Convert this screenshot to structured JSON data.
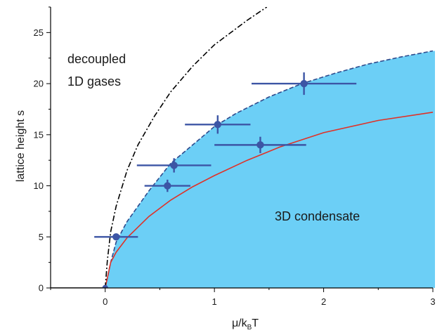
{
  "chart_data": {
    "type": "scatter",
    "xlabel": "μ/k",
    "xlabel_sub": "B",
    "xlabel_tail": "T",
    "ylabel": "lattice height s",
    "xlim": [
      -0.5,
      3
    ],
    "ylim": [
      0,
      27.5
    ],
    "x_ticks": [
      0,
      1,
      2,
      3
    ],
    "x_tick_labels": [
      "0",
      "1",
      "2",
      "3"
    ],
    "y_ticks": [
      0,
      5,
      10,
      15,
      20,
      25
    ],
    "y_tick_labels": [
      "0",
      "5",
      "10",
      "15",
      "20",
      "25"
    ],
    "grid": false,
    "colors": {
      "region_fill": "#6ccff6",
      "boundary_line": "#2e4a8c",
      "points": "#3c55a5",
      "theory_line": "#e03127",
      "dashdot_line": "#000000",
      "axis": "#000000"
    },
    "annotations": [
      {
        "id": "decoupled",
        "lines": [
          "decoupled",
          "1D gases"
        ]
      },
      {
        "id": "condensate",
        "lines": [
          "3D condensate"
        ]
      }
    ],
    "data_points": [
      {
        "x": 0.1,
        "y": 5,
        "xerr": 0.2,
        "yerr": 0
      },
      {
        "x": 0.57,
        "y": 10,
        "xerr": 0.21,
        "yerr": 0.6
      },
      {
        "x": 0.63,
        "y": 12,
        "xerr": 0.34,
        "yerr": 0.7
      },
      {
        "x": 1.03,
        "y": 16,
        "xerr": 0.3,
        "yerr": 0.9
      },
      {
        "x": 1.42,
        "y": 14,
        "xerr": 0.42,
        "yerr": 0.8
      },
      {
        "x": 1.82,
        "y": 20,
        "xerr": 0.48,
        "yerr": 1.1
      }
    ],
    "region_boundary": [
      [
        0,
        0
      ],
      [
        0.05,
        2.5
      ],
      [
        0.1,
        4.5
      ],
      [
        0.2,
        6.5
      ],
      [
        0.4,
        9.5
      ],
      [
        0.6,
        12.2
      ],
      [
        0.8,
        14.0
      ],
      [
        1.0,
        15.8
      ],
      [
        1.2,
        17.1
      ],
      [
        1.5,
        18.7
      ],
      [
        1.8,
        20.0
      ],
      [
        2.1,
        21.0
      ],
      [
        2.4,
        21.9
      ],
      [
        2.7,
        22.6
      ],
      [
        3.0,
        23.2
      ]
    ],
    "red_curve": [
      [
        0.0,
        0
      ],
      [
        0.05,
        2.5
      ],
      [
        0.1,
        3.5
      ],
      [
        0.2,
        4.9
      ],
      [
        0.4,
        7.0
      ],
      [
        0.6,
        8.6
      ],
      [
        0.8,
        9.9
      ],
      [
        1.0,
        11.0
      ],
      [
        1.3,
        12.5
      ],
      [
        1.6,
        13.8
      ],
      [
        2.0,
        15.2
      ],
      [
        2.5,
        16.4
      ],
      [
        3.0,
        17.2
      ]
    ],
    "dashdot_curve": [
      [
        0.0,
        0
      ],
      [
        0.02,
        2.7
      ],
      [
        0.05,
        5.5
      ],
      [
        0.1,
        8.0
      ],
      [
        0.2,
        11.5
      ],
      [
        0.3,
        14.0
      ],
      [
        0.45,
        16.8
      ],
      [
        0.6,
        19.2
      ],
      [
        0.8,
        21.7
      ],
      [
        1.0,
        23.8
      ],
      [
        1.3,
        26.2
      ],
      [
        1.48,
        27.5
      ]
    ]
  }
}
